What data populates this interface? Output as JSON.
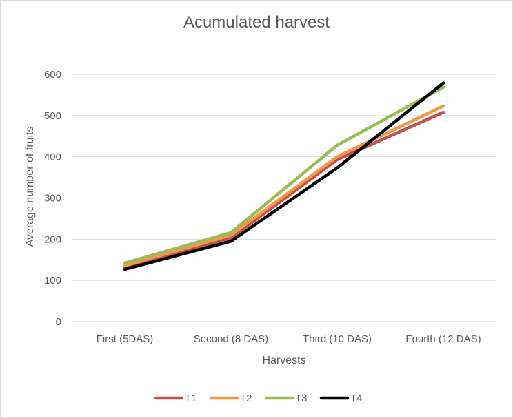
{
  "chart_data": {
    "type": "line",
    "title": "Acumulated harvest",
    "xlabel": "Harvests",
    "ylabel": "Average number of fruits",
    "categories": [
      "First (5DAS)",
      "Second (8 DAS)",
      "Third (10 DAS)",
      "Fourth (12 DAS)"
    ],
    "ylim": [
      0,
      600
    ],
    "yticks": [
      0,
      100,
      200,
      300,
      400,
      500,
      600
    ],
    "grid": true,
    "legend_position": "bottom",
    "series": [
      {
        "name": "T1",
        "color": "#c0504d",
        "values": [
          132,
          203,
          393,
          508
        ]
      },
      {
        "name": "T2",
        "color": "#f79646",
        "values": [
          136,
          210,
          400,
          523
        ]
      },
      {
        "name": "T3",
        "color": "#9bbb59",
        "values": [
          142,
          216,
          428,
          569
        ]
      },
      {
        "name": "T4",
        "color": "#000000",
        "values": [
          127,
          195,
          373,
          579
        ]
      }
    ]
  }
}
